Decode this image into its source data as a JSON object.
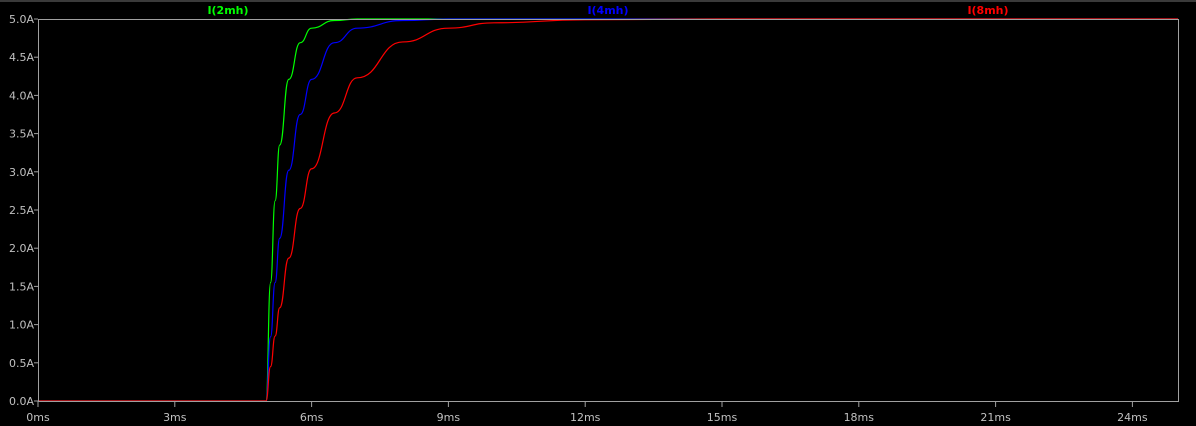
{
  "chart_data": {
    "type": "line",
    "title": "",
    "xlabel": "",
    "ylabel": "",
    "xlim": [
      0,
      25
    ],
    "ylim": [
      0,
      5
    ],
    "x_unit": "ms",
    "y_unit": "A",
    "x_ticks": [
      "0ms",
      "3ms",
      "6ms",
      "9ms",
      "12ms",
      "15ms",
      "18ms",
      "21ms",
      "24ms"
    ],
    "x_tick_values": [
      0,
      3,
      6,
      9,
      12,
      15,
      18,
      21,
      24
    ],
    "y_ticks": [
      "0.0A",
      "0.5A",
      "1.0A",
      "1.5A",
      "2.0A",
      "2.5A",
      "3.0A",
      "3.5A",
      "4.0A",
      "4.5A",
      "5.0A"
    ],
    "y_tick_values": [
      0,
      0.5,
      1,
      1.5,
      2,
      2.5,
      3,
      3.5,
      4,
      4.5,
      5
    ],
    "grid": false,
    "legend_placement": "top",
    "background": "#000000",
    "series": [
      {
        "name": "I(2mh)",
        "color": "#00ff00",
        "x": [
          0,
          5,
          5.1,
          5.2,
          5.3,
          5.5,
          5.75,
          6,
          6.5,
          7
        ],
        "y": [
          0,
          0,
          1.55,
          2.62,
          3.35,
          4.21,
          4.69,
          4.88,
          4.98,
          5.0
        ]
      },
      {
        "name": "I(4mh)",
        "color": "#0000ff",
        "x": [
          0,
          5,
          5.1,
          5.2,
          5.3,
          5.5,
          5.75,
          6,
          6.5,
          7,
          8,
          9
        ],
        "y": [
          0,
          0,
          0.84,
          1.55,
          2.13,
          3.02,
          3.75,
          4.21,
          4.69,
          4.88,
          4.98,
          5.0
        ]
      },
      {
        "name": "I(8mh)",
        "color": "#ff0000",
        "x": [
          0,
          5,
          5.1,
          5.2,
          5.3,
          5.5,
          5.75,
          6,
          6.5,
          7,
          8,
          9,
          10,
          12,
          15,
          25
        ],
        "y": [
          0,
          0,
          0.45,
          0.85,
          1.22,
          1.87,
          2.52,
          3.04,
          3.77,
          4.23,
          4.7,
          4.88,
          4.95,
          4.99,
          5.0,
          5.0
        ]
      }
    ]
  }
}
